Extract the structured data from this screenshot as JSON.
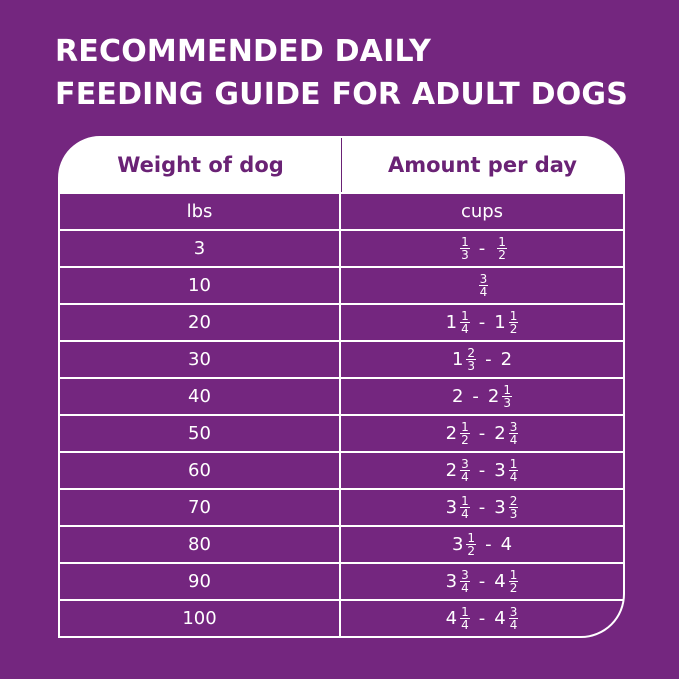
{
  "title": {
    "line1": "RECOMMENDED DAILY",
    "line2": "FEEDING GUIDE FOR ADULT DOGS"
  },
  "colors": {
    "background": "#74267f",
    "header_text": "#6a2275",
    "text": "#ffffff"
  },
  "table": {
    "headers": [
      "Weight of dog",
      "Amount per day"
    ],
    "units": [
      "lbs",
      "cups"
    ],
    "rows": [
      {
        "weight": "3",
        "low": {
          "whole": "",
          "num": "1",
          "den": "3"
        },
        "high": {
          "whole": "",
          "num": "1",
          "den": "2"
        }
      },
      {
        "weight": "10",
        "low": {
          "whole": "",
          "num": "3",
          "den": "4"
        }
      },
      {
        "weight": "20",
        "low": {
          "whole": "1",
          "num": "1",
          "den": "4"
        },
        "high": {
          "whole": "1",
          "num": "1",
          "den": "2"
        }
      },
      {
        "weight": "30",
        "low": {
          "whole": "1",
          "num": "2",
          "den": "3"
        },
        "high": {
          "whole": "2"
        }
      },
      {
        "weight": "40",
        "low": {
          "whole": "2"
        },
        "high": {
          "whole": "2",
          "num": "1",
          "den": "3"
        }
      },
      {
        "weight": "50",
        "low": {
          "whole": "2",
          "num": "1",
          "den": "2"
        },
        "high": {
          "whole": "2",
          "num": "3",
          "den": "4"
        }
      },
      {
        "weight": "60",
        "low": {
          "whole": "2",
          "num": "3",
          "den": "4"
        },
        "high": {
          "whole": "3",
          "num": "1",
          "den": "4"
        }
      },
      {
        "weight": "70",
        "low": {
          "whole": "3",
          "num": "1",
          "den": "4"
        },
        "high": {
          "whole": "3",
          "num": "2",
          "den": "3"
        }
      },
      {
        "weight": "80",
        "low": {
          "whole": "3",
          "num": "1",
          "den": "2"
        },
        "high": {
          "whole": "4"
        }
      },
      {
        "weight": "90",
        "low": {
          "whole": "3",
          "num": "3",
          "den": "4"
        },
        "high": {
          "whole": "4",
          "num": "1",
          "den": "2"
        }
      },
      {
        "weight": "100",
        "low": {
          "whole": "4",
          "num": "1",
          "den": "4"
        },
        "high": {
          "whole": "4",
          "num": "3",
          "den": "4"
        }
      }
    ],
    "separator": "-"
  }
}
